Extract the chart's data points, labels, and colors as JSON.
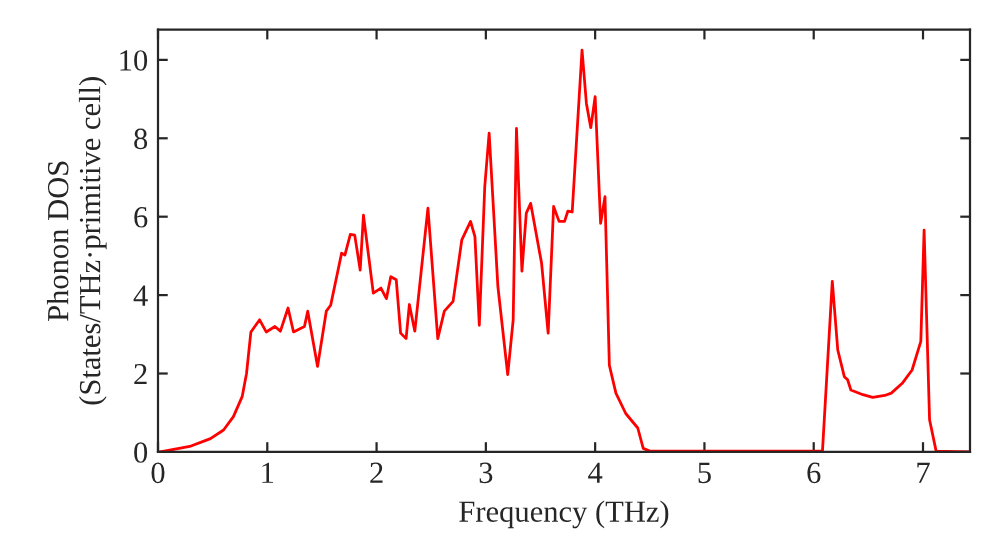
{
  "chart_data": {
    "type": "line",
    "xlabel": "Frequency (THz)",
    "ylabel": "Phonon DOS\n(States/THz·primitive cell)",
    "xlim": [
      0,
      7.43
    ],
    "ylim": [
      0,
      10.77
    ],
    "xticks": [
      0,
      1,
      2,
      3,
      4,
      5,
      6,
      7
    ],
    "yticks": [
      0,
      2,
      4,
      6,
      8,
      10
    ],
    "series": [
      {
        "color": "#ff0000",
        "x": [
          0.02,
          0.29,
          0.48,
          0.6,
          0.69,
          0.77,
          0.81,
          0.85,
          0.93,
          0.99,
          1.07,
          1.12,
          1.19,
          1.24,
          1.34,
          1.37,
          1.46,
          1.54,
          1.58,
          1.68,
          1.71,
          1.76,
          1.8,
          1.85,
          1.88,
          1.97,
          2.04,
          2.09,
          2.13,
          2.18,
          2.22,
          2.27,
          2.3,
          2.35,
          2.47,
          2.56,
          2.62,
          2.7,
          2.78,
          2.86,
          2.9,
          2.94,
          2.99,
          3.03,
          3.11,
          3.2,
          3.25,
          3.28,
          3.33,
          3.37,
          3.41,
          3.51,
          3.57,
          3.62,
          3.67,
          3.72,
          3.75,
          3.79,
          3.83,
          3.88,
          3.92,
          3.96,
          4.0,
          4.05,
          4.09,
          4.13,
          4.19,
          4.28,
          4.39,
          4.44,
          4.5,
          6.08,
          6.17,
          6.22,
          6.28,
          6.31,
          6.34,
          6.45,
          6.54,
          6.65,
          6.71,
          6.81,
          6.9,
          6.98,
          7.01,
          7.06,
          7.12,
          7.42
        ],
        "values": [
          0,
          0.14,
          0.34,
          0.56,
          0.9,
          1.41,
          2.0,
          3.06,
          3.37,
          3.06,
          3.2,
          3.08,
          3.67,
          3.06,
          3.2,
          3.59,
          2.18,
          3.59,
          3.74,
          5.07,
          5.02,
          5.55,
          5.53,
          4.64,
          6.04,
          4.05,
          4.18,
          3.91,
          4.47,
          4.39,
          3.03,
          2.89,
          3.76,
          3.08,
          6.22,
          2.89,
          3.59,
          3.84,
          5.41,
          5.88,
          5.49,
          3.23,
          6.77,
          8.13,
          4.22,
          1.97,
          3.37,
          8.25,
          4.61,
          6.09,
          6.34,
          4.81,
          3.03,
          6.26,
          5.88,
          5.88,
          6.14,
          6.12,
          7.96,
          10.25,
          8.89,
          8.27,
          9.06,
          5.83,
          6.51,
          2.21,
          1.5,
          0.98,
          0.61,
          0.09,
          0.02,
          0.02,
          4.35,
          2.6,
          1.92,
          1.84,
          1.58,
          1.46,
          1.39,
          1.44,
          1.5,
          1.75,
          2.09,
          2.82,
          5.66,
          0.82,
          0.02,
          0
        ]
      }
    ]
  }
}
